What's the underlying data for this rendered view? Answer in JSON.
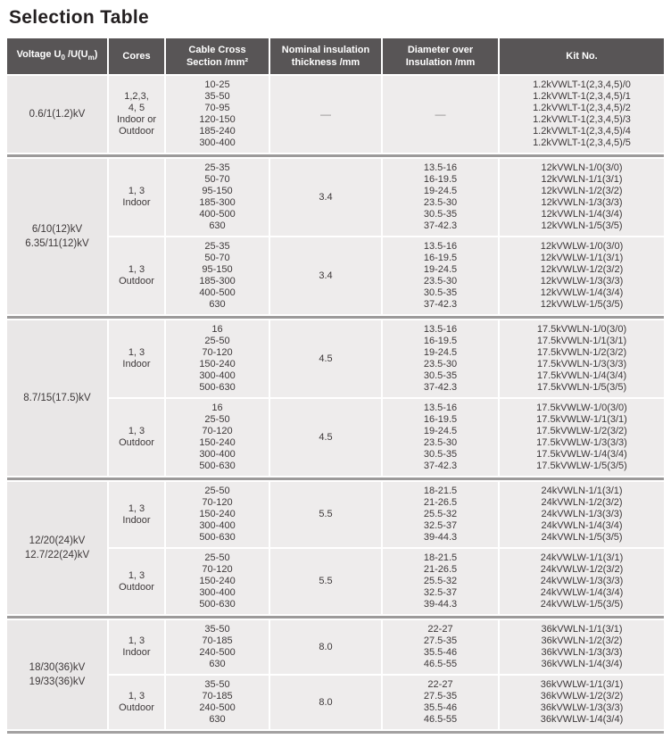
{
  "title": "Selection Table",
  "colors": {
    "header_bg": "#585556",
    "row_bg": "#eeecec",
    "voltage_col_bg": "#e9e7e7",
    "separator": "#9c9a9a",
    "text": "#3d3839",
    "title": "#231f20",
    "dash": "#8f8d8d"
  },
  "table": {
    "headers": {
      "voltage": {
        "pre": "Voltage U",
        "sub1": "0",
        "mid": " /U(U",
        "sub2": "m",
        "post": ")"
      },
      "cores": "Cores",
      "section_line1": "Cable Cross",
      "section_line2": "Section /mm²",
      "thickness_line1": "Nominal insulation",
      "thickness_line2": "thickness /mm",
      "diameter_line1": "Diameter over",
      "diameter_line2": "Insulation /mm",
      "kit": "Kit No."
    },
    "groups": [
      {
        "voltage": [
          "0.6/1(1.2)kV"
        ],
        "rows": [
          {
            "cores": [
              "1,2,3,",
              "4, 5",
              "Indoor or",
              "Outdoor"
            ],
            "sections": [
              "10-25",
              "35-50",
              "70-95",
              "120-150",
              "185-240",
              "300-400"
            ],
            "thickness": "—",
            "diameters": [
              "—"
            ],
            "kits": [
              "1.2kVWLT-1(2,3,4,5)/0",
              "1.2kVWLT-1(2,3,4,5)/1",
              "1.2kVWLT-1(2,3,4,5)/2",
              "1.2kVWLT-1(2,3,4,5)/3",
              "1.2kVWLT-1(2,3,4,5)/4",
              "1.2kVWLT-1(2,3,4,5)/5"
            ]
          }
        ]
      },
      {
        "voltage": [
          "6/10(12)kV",
          "6.35/11(12)kV"
        ],
        "rows": [
          {
            "cores": [
              "1, 3",
              "Indoor"
            ],
            "sections": [
              "25-35",
              "50-70",
              "95-150",
              "185-300",
              "400-500",
              "630"
            ],
            "thickness": "3.4",
            "diameters": [
              "13.5-16",
              "16-19.5",
              "19-24.5",
              "23.5-30",
              "30.5-35",
              "37-42.3"
            ],
            "kits": [
              "12kVWLN-1/0(3/0)",
              "12kVWLN-1/1(3/1)",
              "12kVWLN-1/2(3/2)",
              "12kVWLN-1/3(3/3)",
              "12kVWLN-1/4(3/4)",
              "12kVWLN-1/5(3/5)"
            ]
          },
          {
            "cores": [
              "1, 3",
              "Outdoor"
            ],
            "sections": [
              "25-35",
              "50-70",
              "95-150",
              "185-300",
              "400-500",
              "630"
            ],
            "thickness": "3.4",
            "diameters": [
              "13.5-16",
              "16-19.5",
              "19-24.5",
              "23.5-30",
              "30.5-35",
              "37-42.3"
            ],
            "kits": [
              "12kVWLW-1/0(3/0)",
              "12kVWLW-1/1(3/1)",
              "12kVWLW-1/2(3/2)",
              "12kVWLW-1/3(3/3)",
              "12kVWLW-1/4(3/4)",
              "12kVWLW-1/5(3/5)"
            ]
          }
        ]
      },
      {
        "voltage": [
          "8.7/15(17.5)kV"
        ],
        "rows": [
          {
            "cores": [
              "1, 3",
              "Indoor"
            ],
            "sections": [
              "16",
              "25-50",
              "70-120",
              "150-240",
              "300-400",
              "500-630"
            ],
            "thickness": "4.5",
            "diameters": [
              "13.5-16",
              "16-19.5",
              "19-24.5",
              "23.5-30",
              "30.5-35",
              "37-42.3"
            ],
            "kits": [
              "17.5kVWLN-1/0(3/0)",
              "17.5kVWLN-1/1(3/1)",
              "17.5kVWLN-1/2(3/2)",
              "17.5kVWLN-1/3(3/3)",
              "17.5kVWLN-1/4(3/4)",
              "17.5kVWLN-1/5(3/5)"
            ]
          },
          {
            "cores": [
              "1, 3",
              "Outdoor"
            ],
            "sections": [
              "16",
              "25-50",
              "70-120",
              "150-240",
              "300-400",
              "500-630"
            ],
            "thickness": "4.5",
            "diameters": [
              "13.5-16",
              "16-19.5",
              "19-24.5",
              "23.5-30",
              "30.5-35",
              "37-42.3"
            ],
            "kits": [
              "17.5kVWLW-1/0(3/0)",
              "17.5kVWLW-1/1(3/1)",
              "17.5kVWLW-1/2(3/2)",
              "17.5kVWLW-1/3(3/3)",
              "17.5kVWLW-1/4(3/4)",
              "17.5kVWLW-1/5(3/5)"
            ]
          }
        ]
      },
      {
        "voltage": [
          "12/20(24)kV",
          "12.7/22(24)kV"
        ],
        "rows": [
          {
            "cores": [
              "1, 3",
              "Indoor"
            ],
            "sections": [
              "25-50",
              "70-120",
              "150-240",
              "300-400",
              "500-630"
            ],
            "thickness": "5.5",
            "diameters": [
              "18-21.5",
              "21-26.5",
              "25.5-32",
              "32.5-37",
              "39-44.3"
            ],
            "kits": [
              "24kVWLN-1/1(3/1)",
              "24kVWLN-1/2(3/2)",
              "24kVWLN-1/3(3/3)",
              "24kVWLN-1/4(3/4)",
              "24kVWLN-1/5(3/5)"
            ]
          },
          {
            "cores": [
              "1, 3",
              "Outdoor"
            ],
            "sections": [
              "25-50",
              "70-120",
              "150-240",
              "300-400",
              "500-630"
            ],
            "thickness": "5.5",
            "diameters": [
              "18-21.5",
              "21-26.5",
              "25.5-32",
              "32.5-37",
              "39-44.3"
            ],
            "kits": [
              "24kVWLW-1/1(3/1)",
              "24kVWLW-1/2(3/2)",
              "24kVWLW-1/3(3/3)",
              "24kVWLW-1/4(3/4)",
              "24kVWLW-1/5(3/5)"
            ]
          }
        ]
      },
      {
        "voltage": [
          "18/30(36)kV",
          "19/33(36)kV"
        ],
        "rows": [
          {
            "cores": [
              "1, 3",
              "Indoor"
            ],
            "sections": [
              "35-50",
              "70-185",
              "240-500",
              "630"
            ],
            "thickness": "8.0",
            "diameters": [
              "22-27",
              "27.5-35",
              "35.5-46",
              "46.5-55"
            ],
            "kits": [
              "36kVWLN-1/1(3/1)",
              "36kVWLN-1/2(3/2)",
              "36kVWLN-1/3(3/3)",
              "36kVWLN-1/4(3/4)"
            ]
          },
          {
            "cores": [
              "1, 3",
              "Outdoor"
            ],
            "sections": [
              "35-50",
              "70-185",
              "240-500",
              "630"
            ],
            "thickness": "8.0",
            "diameters": [
              "22-27",
              "27.5-35",
              "35.5-46",
              "46.5-55"
            ],
            "kits": [
              "36kVWLW-1/1(3/1)",
              "36kVWLW-1/2(3/2)",
              "36kVWLW-1/3(3/3)",
              "36kVWLW-1/4(3/4)"
            ]
          }
        ]
      }
    ]
  }
}
